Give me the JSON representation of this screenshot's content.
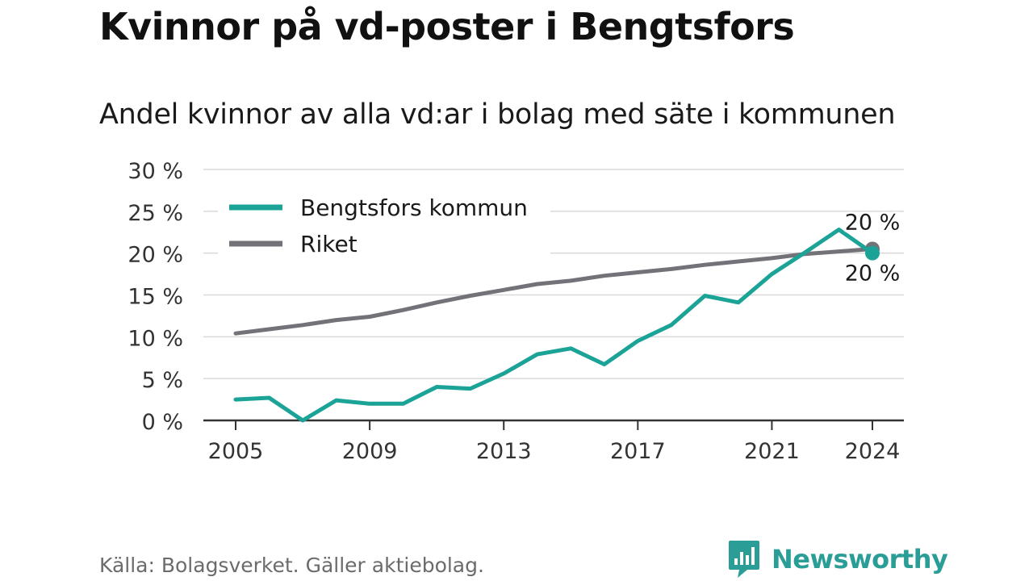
{
  "title": "Kvinnor på vd-poster i Bengtsfors",
  "subtitle": "Andel kvinnor av alla vd:ar i bolag med säte i kommunen",
  "source": "Källa: Bolagsverket. Gäller aktiebolag.",
  "brand": {
    "name": "Newsworthy",
    "logo_icon": "bar-chart-speech-bubble-icon",
    "color": "#2a9d96"
  },
  "chart_data": {
    "type": "line",
    "x": [
      2005,
      2006,
      2007,
      2008,
      2009,
      2010,
      2011,
      2012,
      2013,
      2014,
      2015,
      2016,
      2017,
      2018,
      2019,
      2020,
      2021,
      2022,
      2023,
      2024
    ],
    "xticks": [
      2005,
      2009,
      2013,
      2017,
      2021,
      2024
    ],
    "xtick_labels": [
      "2005",
      "2009",
      "2013",
      "2017",
      "2021",
      "2024"
    ],
    "ylim": [
      0,
      30
    ],
    "yticks": [
      0,
      5,
      10,
      15,
      20,
      25,
      30
    ],
    "ytick_labels": [
      "0 %",
      "5 %",
      "10 %",
      "15 %",
      "20 %",
      "25 %",
      "30 %"
    ],
    "grid": true,
    "legend_position": "top-left",
    "series": [
      {
        "name": "Bengtsfors kommun",
        "color": "#1aa396",
        "values": [
          2.5,
          2.7,
          0.0,
          2.4,
          2.0,
          2.0,
          4.0,
          3.8,
          5.6,
          7.9,
          8.6,
          6.7,
          9.5,
          11.4,
          14.9,
          14.1,
          17.5,
          20.1,
          22.8,
          20.0
        ],
        "end_label": "20 %"
      },
      {
        "name": "Riket",
        "color": "#737278",
        "values": [
          10.4,
          10.9,
          11.4,
          12.0,
          12.4,
          13.2,
          14.1,
          14.9,
          15.6,
          16.3,
          16.7,
          17.3,
          17.7,
          18.1,
          18.6,
          19.0,
          19.4,
          19.9,
          20.2,
          20.5
        ],
        "end_label": "20 %"
      }
    ]
  }
}
